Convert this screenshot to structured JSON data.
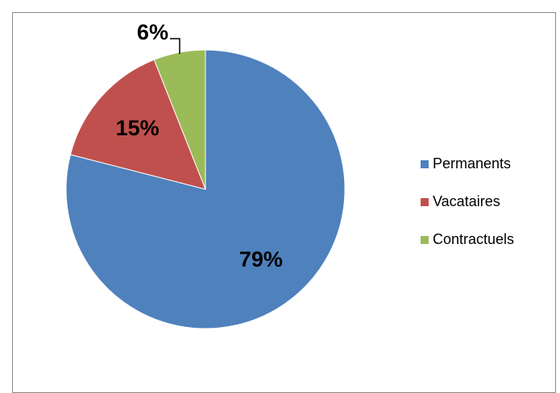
{
  "chart_data": {
    "type": "pie",
    "categories": [
      "Permanents",
      "Vacataires",
      "Contractuels"
    ],
    "values": [
      79,
      15,
      6
    ],
    "value_labels": [
      "79%",
      "15%",
      "6%"
    ],
    "colors": [
      "#4f81bd",
      "#c0504d",
      "#9bbb59"
    ],
    "legend": "right"
  }
}
